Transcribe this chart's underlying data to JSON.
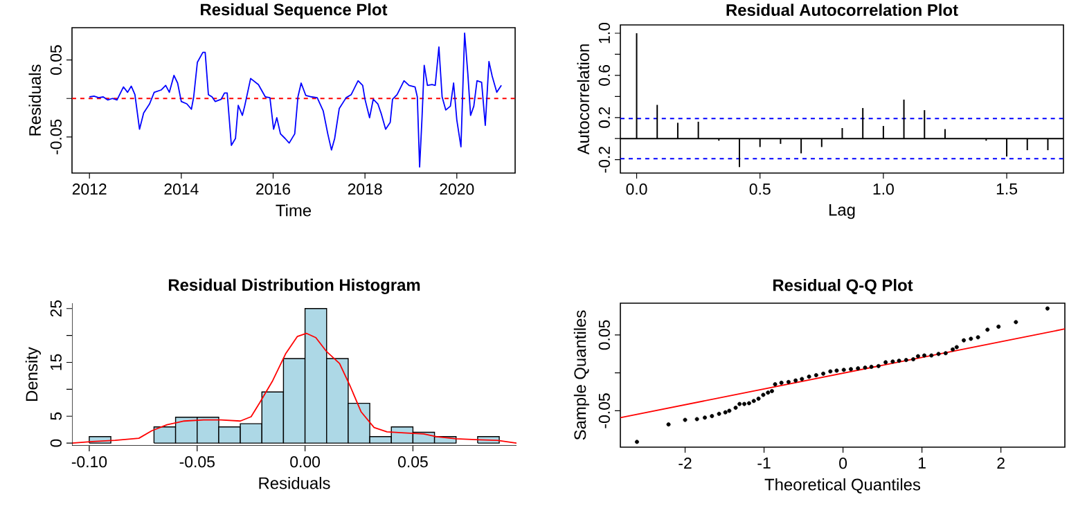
{
  "chart_data": [
    {
      "type": "line",
      "title": "Residual Sequence Plot",
      "xlabel": "Time",
      "ylabel": "Residuals",
      "color": "#0000ff",
      "x": [
        2012.0,
        2012.1,
        2012.2,
        2012.3,
        2012.4,
        2012.5,
        2012.6,
        2012.74,
        2012.83,
        2012.91,
        2012.99,
        2013.09,
        2013.18,
        2013.31,
        2013.41,
        2013.56,
        2013.66,
        2013.74,
        2013.84,
        2013.92,
        2014.0,
        2014.12,
        2014.22,
        2014.27,
        2014.35,
        2014.47,
        2014.52,
        2014.59,
        2014.67,
        2014.74,
        2014.87,
        2014.94,
        2015.0,
        2015.09,
        2015.18,
        2015.24,
        2015.33,
        2015.38,
        2015.51,
        2015.68,
        2015.83,
        2015.93,
        2016.01,
        2016.08,
        2016.16,
        2016.26,
        2016.35,
        2016.47,
        2016.54,
        2016.61,
        2016.71,
        2016.84,
        2016.96,
        2017.09,
        2017.19,
        2017.27,
        2017.34,
        2017.44,
        2017.59,
        2017.7,
        2017.85,
        2017.95,
        2018.0,
        2018.1,
        2018.18,
        2018.28,
        2018.35,
        2018.45,
        2018.55,
        2018.6,
        2018.7,
        2018.85,
        2018.96,
        2019.09,
        2019.14,
        2019.19,
        2019.24,
        2019.29,
        2019.36,
        2019.46,
        2019.53,
        2019.61,
        2019.68,
        2019.76,
        2019.86,
        2019.93,
        2020.0,
        2020.09,
        2020.17,
        2020.24,
        2020.3,
        2020.37,
        2020.44,
        2020.54,
        2020.62,
        2020.7,
        2020.77,
        2020.87,
        2020.97
      ],
      "values": [
        0.002,
        0.003,
        0.001,
        0.002,
        -0.002,
        0.0,
        -0.002,
        0.015,
        0.008,
        0.016,
        0.005,
        -0.04,
        -0.019,
        -0.007,
        0.008,
        0.011,
        0.017,
        0.008,
        0.03,
        0.02,
        -0.004,
        -0.007,
        -0.014,
        0.002,
        0.047,
        0.06,
        0.06,
        0.005,
        0.002,
        -0.004,
        -0.001,
        0.007,
        0.007,
        -0.061,
        -0.052,
        -0.009,
        -0.022,
        -0.01,
        0.026,
        0.018,
        0.002,
        0.001,
        -0.04,
        -0.025,
        -0.046,
        -0.052,
        -0.058,
        -0.046,
        0.002,
        0.02,
        0.004,
        0.002,
        0.001,
        -0.016,
        -0.046,
        -0.067,
        -0.052,
        -0.013,
        0.001,
        0.005,
        0.023,
        0.017,
        -0.001,
        -0.025,
        -0.001,
        -0.007,
        -0.019,
        -0.04,
        -0.031,
        -0.001,
        0.005,
        0.023,
        0.017,
        0.015,
        0.002,
        -0.089,
        -0.028,
        0.043,
        0.017,
        0.018,
        0.017,
        0.067,
        0.002,
        -0.015,
        -0.01,
        0.02,
        -0.028,
        -0.063,
        0.085,
        0.032,
        -0.022,
        -0.01,
        0.023,
        0.021,
        -0.035,
        0.048,
        0.029,
        0.008,
        0.017
      ],
      "xlim": [
        2011.62,
        2021.27
      ],
      "ylim": [
        -0.097,
        0.092
      ],
      "xticks": [
        2012,
        2014,
        2016,
        2018,
        2020
      ],
      "yticks": [
        {
          "value": -0.05,
          "label": "-0.05"
        },
        {
          "value": 0,
          "label": null
        },
        {
          "value": 0.05,
          "label": "0.05"
        }
      ],
      "ref_lines": [
        {
          "axis": "y",
          "value": 0,
          "label": null,
          "color": "#ff0000",
          "line_style": "dashed"
        }
      ]
    },
    {
      "type": "bar",
      "title": "Residual Autocorrelation Plot",
      "xlabel": "Lag",
      "ylabel": "Autocorrelation",
      "color": "#000000",
      "x": [
        0,
        0.0833,
        0.1667,
        0.25,
        0.3333,
        0.4167,
        0.5,
        0.5833,
        0.6667,
        0.75,
        0.8333,
        0.9167,
        1.0,
        1.0833,
        1.1667,
        1.25,
        1.3333,
        1.4167,
        1.5,
        1.5833,
        1.6667
      ],
      "values": [
        1.0,
        0.32,
        0.15,
        0.16,
        -0.02,
        -0.27,
        -0.08,
        -0.05,
        -0.14,
        -0.08,
        0.1,
        0.29,
        0.12,
        0.37,
        0.27,
        0.09,
        null,
        -0.02,
        -0.17,
        -0.11,
        -0.11
      ],
      "xlim": [
        -0.066,
        1.73
      ],
      "ylim": [
        -0.327,
        1.079
      ],
      "xticks": [
        {
          "value": 0,
          "label": "0.0"
        },
        {
          "value": 0.5,
          "label": "0.5"
        },
        {
          "value": 1,
          "label": "1.0"
        },
        {
          "value": 1.5,
          "label": "1.5"
        }
      ],
      "yticks": [
        {
          "value": -0.2,
          "label": "-0.2"
        },
        {
          "value": 0,
          "label": null
        },
        {
          "value": 0.2,
          "label": "0.2"
        },
        {
          "value": 0.4,
          "label": null
        },
        {
          "value": 0.6,
          "label": "0.6"
        },
        {
          "value": 0.8,
          "label": null
        },
        {
          "value": 1.0,
          "label": "1.0"
        }
      ],
      "ref_lines": [
        {
          "axis": "y",
          "value": 0,
          "label": null,
          "color": "#000000",
          "line_style": "solid"
        },
        {
          "axis": "y",
          "value": 0.19,
          "label": null,
          "color": "#0000ff",
          "line_style": "dashed"
        },
        {
          "axis": "y",
          "value": -0.19,
          "label": null,
          "color": "#0000ff",
          "line_style": "dashed"
        }
      ]
    },
    {
      "type": "histogram",
      "title": "Residual Distribution Histogram",
      "xlabel": "Residuals",
      "ylabel": "Density",
      "bins": [
        -0.1,
        -0.09,
        -0.08,
        -0.07,
        -0.06,
        -0.05,
        -0.04,
        -0.03,
        -0.02,
        -0.01,
        0.0,
        0.01,
        0.02,
        0.03,
        0.04,
        0.05,
        0.06,
        0.07,
        0.08,
        0.09
      ],
      "series": [
        {
          "type": "histogram",
          "color": "#add8e6",
          "values": [
            1.2,
            0,
            0,
            3,
            4.8,
            4.8,
            3,
            3.6,
            9.5,
            15.7,
            25,
            15.7,
            7.4,
            1.2,
            3,
            2,
            1.2,
            0,
            1.2
          ]
        },
        {
          "type": "line",
          "color": "#ff0000",
          "x": [
            -0.108,
            -0.0985,
            -0.088,
            -0.077,
            -0.071,
            -0.064,
            -0.056,
            -0.047,
            -0.039,
            -0.03,
            -0.025,
            -0.021,
            -0.015,
            -0.009,
            -0.0036,
            0.0006,
            0.005,
            0.01,
            0.016,
            0.021,
            0.026,
            0.032,
            0.038,
            0.046,
            0.055,
            0.061,
            0.07,
            0.081,
            0.089,
            0.098
          ],
          "values": [
            0,
            0.3,
            0.5,
            0.9,
            2.3,
            3.4,
            4.1,
            4.3,
            4.3,
            4.1,
            4.9,
            7.5,
            11.6,
            16.6,
            19.8,
            20.4,
            19.6,
            17.0,
            14.8,
            10.5,
            5.8,
            2.9,
            2.1,
            1.9,
            1.7,
            1.2,
            0.8,
            0.6,
            0.5,
            0
          ]
        }
      ],
      "xlim": [
        -0.108,
        0.098
      ],
      "ylim": [
        -0.5,
        26
      ],
      "xticks": [
        {
          "value": -0.1,
          "label": "-0.10"
        },
        {
          "value": -0.05,
          "label": "-0.05"
        },
        {
          "value": 0,
          "label": "0.00"
        },
        {
          "value": 0.05,
          "label": "0.05"
        }
      ],
      "yticks": [
        0,
        5,
        {
          "value": 10,
          "label": null
        },
        15,
        {
          "value": 20,
          "label": null
        },
        25
      ]
    },
    {
      "type": "scatter",
      "title": "Residual Q-Q Plot",
      "xlabel": "Theoretical Quantiles",
      "ylabel": "Sample Quantiles",
      "series": [
        {
          "type": "scatter",
          "color": "#000000",
          "marker": "circle",
          "x": [
            -2.61,
            -2.21,
            -2.0,
            -1.85,
            -1.75,
            -1.66,
            -1.57,
            -1.49,
            -1.44,
            -1.36,
            -1.31,
            -1.25,
            -1.19,
            -1.13,
            -1.07,
            -1.01,
            -0.95,
            -0.9,
            -0.86,
            -0.78,
            -0.69,
            -0.6,
            -0.52,
            -0.43,
            -0.34,
            -0.25,
            -0.16,
            -0.08,
            0.01,
            0.1,
            0.19,
            0.28,
            0.36,
            0.45,
            0.54,
            0.63,
            0.71,
            0.8,
            0.89,
            0.95,
            1.03,
            1.12,
            1.21,
            1.3,
            1.39,
            1.44,
            1.53,
            1.62,
            1.71,
            1.83,
            1.97,
            2.19,
            2.59
          ],
          "values": [
            -0.091,
            -0.068,
            -0.062,
            -0.061,
            -0.059,
            -0.057,
            -0.054,
            -0.052,
            -0.05,
            -0.046,
            -0.041,
            -0.041,
            -0.04,
            -0.037,
            -0.034,
            -0.029,
            -0.026,
            -0.024,
            -0.015,
            -0.013,
            -0.012,
            -0.01,
            -0.008,
            -0.005,
            -0.003,
            -0.001,
            0.002,
            0.003,
            0.004,
            0.005,
            0.006,
            0.007,
            0.008,
            0.009,
            0.014,
            0.015,
            0.016,
            0.017,
            0.018,
            0.022,
            0.023,
            0.023,
            0.025,
            0.026,
            0.031,
            0.034,
            0.043,
            0.045,
            0.047,
            0.057,
            0.061,
            0.067,
            0.085
          ]
        },
        {
          "type": "line",
          "color": "#ff0000",
          "x": [
            -2.82,
            2.81
          ],
          "values": [
            -0.059,
            0.058
          ]
        }
      ],
      "xlim": [
        -2.82,
        2.81
      ],
      "ylim": [
        -0.098,
        0.092
      ],
      "xticks": [
        -2,
        -1,
        0,
        1,
        2
      ],
      "yticks": [
        {
          "value": -0.05,
          "label": "-0.05"
        },
        {
          "value": 0,
          "label": null
        },
        {
          "value": 0.05,
          "label": "0.05"
        }
      ]
    }
  ]
}
